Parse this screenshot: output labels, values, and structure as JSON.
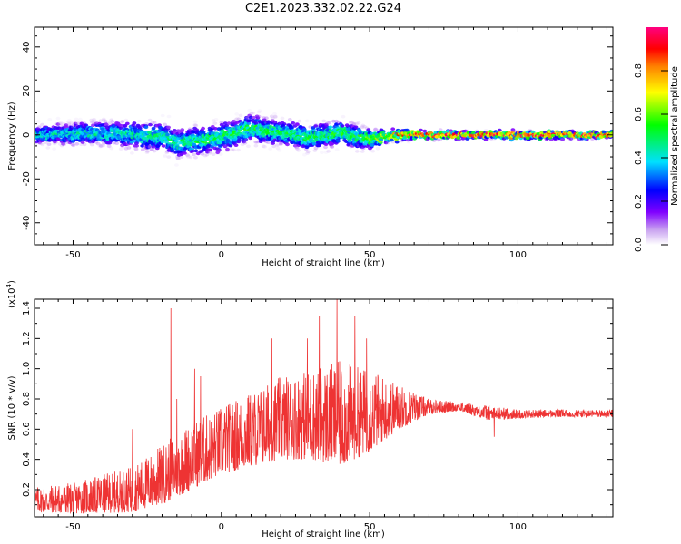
{
  "title": "C2E1.2023.332.02.22.G24",
  "chart_data": [
    {
      "type": "heatmap",
      "title": "",
      "xlabel": "Height of straight line (km)",
      "ylabel": "Frequency (Hz)",
      "xlim": [
        -63,
        132
      ],
      "ylim": [
        -50,
        49
      ],
      "xticks": [
        -50,
        0,
        50,
        100
      ],
      "yticks": [
        -40,
        -20,
        0,
        20,
        40
      ],
      "colorbar": {
        "label": "Normalized spectral amplitude",
        "range": [
          0.0,
          1.0
        ],
        "ticks": [
          0.0,
          0.2,
          0.4,
          0.6,
          0.8
        ],
        "colormap": "rainbow (white-violet-blue-cyan-green-yellow-orange-red-magenta)"
      },
      "description_points": {
        "center_frequency_hz": [
          [
            -60,
            0
          ],
          [
            -40,
            1
          ],
          [
            -20,
            -1
          ],
          [
            -15,
            -4
          ],
          [
            0,
            -1
          ],
          [
            10,
            3
          ],
          [
            20,
            1
          ],
          [
            30,
            -1
          ],
          [
            40,
            1
          ],
          [
            50,
            -2
          ],
          [
            60,
            0
          ],
          [
            80,
            0
          ],
          [
            100,
            0
          ],
          [
            130,
            0
          ]
        ],
        "spread_hz": [
          [
            -60,
            6
          ],
          [
            -20,
            9
          ],
          [
            0,
            9
          ],
          [
            20,
            8
          ],
          [
            45,
            8
          ],
          [
            55,
            4
          ],
          [
            70,
            2.5
          ],
          [
            130,
            2
          ]
        ],
        "peak_amplitude": [
          [
            -60,
            0.4
          ],
          [
            -20,
            0.45
          ],
          [
            0,
            0.5
          ],
          [
            45,
            0.5
          ],
          [
            60,
            0.8
          ],
          [
            80,
            0.9
          ],
          [
            130,
            0.9
          ]
        ]
      }
    },
    {
      "type": "line",
      "title": "",
      "xlabel": "Height of straight line (km)",
      "ylabel": "SNR (10 * v/v)",
      "y_multiplier_label": "(x10",
      "y_multiplier_exp": "4",
      "xlim": [
        -63,
        132
      ],
      "ylim": [
        0.02,
        1.46
      ],
      "xticks": [
        -50,
        0,
        50,
        100
      ],
      "yticks": [
        0.2,
        0.4,
        0.6,
        0.8,
        1.0,
        1.2,
        1.4
      ],
      "series": [
        {
          "color": "#ee3333",
          "envelope_x": [
            -63,
            -50,
            -30,
            -20,
            -10,
            0,
            10,
            20,
            30,
            40,
            50,
            60,
            70,
            80,
            90,
            100,
            110,
            120,
            132
          ],
          "envelope_min": [
            0.05,
            0.04,
            0.05,
            0.1,
            0.2,
            0.3,
            0.35,
            0.4,
            0.4,
            0.35,
            0.45,
            0.6,
            0.7,
            0.72,
            0.66,
            0.67,
            0.68,
            0.68,
            0.68
          ],
          "envelope_max": [
            0.22,
            0.25,
            0.35,
            0.5,
            0.65,
            0.75,
            0.85,
            0.95,
            1.0,
            1.05,
            1.0,
            0.9,
            0.8,
            0.78,
            0.76,
            0.73,
            0.73,
            0.73,
            0.73
          ],
          "spikes": [
            [
              -30,
              0.6
            ],
            [
              -17,
              1.4
            ],
            [
              -15,
              0.8
            ],
            [
              -9,
              1.0
            ],
            [
              -7,
              0.95
            ],
            [
              17,
              1.2
            ],
            [
              29,
              1.2
            ],
            [
              33,
              1.35
            ],
            [
              39,
              1.46
            ],
            [
              45,
              1.35
            ],
            [
              49,
              1.2
            ],
            [
              92,
              0.55
            ]
          ]
        }
      ]
    }
  ]
}
